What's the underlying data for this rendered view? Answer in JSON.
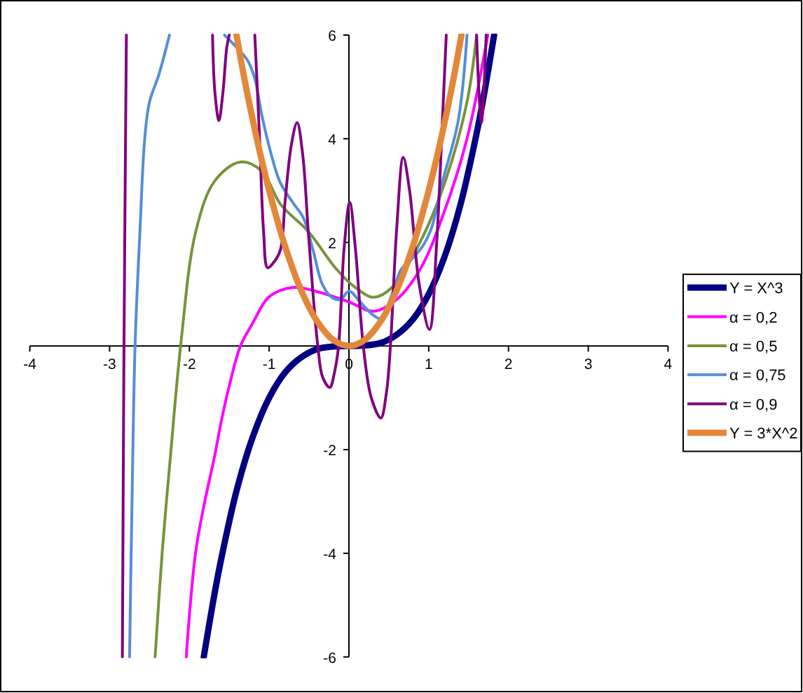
{
  "chart_data": {
    "type": "line",
    "xlim": [
      -4,
      4
    ],
    "ylim": [
      -6,
      6
    ],
    "xticks": [
      -4,
      -3,
      -2,
      -1,
      0,
      1,
      2,
      3,
      4
    ],
    "yticks": [
      -6,
      -4,
      -2,
      {
        "value": 0,
        "label": null
      },
      2,
      4,
      6
    ],
    "legend": "right",
    "marker": "none",
    "series": [
      {
        "name": "Y = X^3",
        "color": "#000080",
        "x": [
          -1.82,
          -1.7,
          -1.6,
          -1.4,
          -1.2,
          -1.0,
          -0.8,
          -0.6,
          -0.4,
          -0.2,
          0,
          0.2,
          0.4,
          0.6,
          0.8,
          1.0,
          1.2,
          1.4,
          1.6,
          1.7,
          1.82
        ],
        "values": [
          -6,
          -4.91,
          -4.1,
          -2.74,
          -1.73,
          -1,
          -0.51,
          -0.22,
          -0.06,
          -0.01,
          0,
          0.01,
          0.06,
          0.22,
          0.51,
          1,
          1.73,
          2.74,
          4.1,
          4.91,
          6
        ]
      },
      {
        "name": "α = 0,2",
        "color": "#ff00ff",
        "x": [
          -2.04,
          -1.92,
          -1.8,
          -1.69,
          -1.6,
          -1.51,
          -1.36,
          -1.21,
          -1.0,
          -0.69,
          -0.4,
          0,
          0.31,
          0.6,
          0.9,
          1.19,
          1.48,
          1.74
        ],
        "values": [
          -6,
          -3.96,
          -2.95,
          -2.17,
          -1.45,
          -0.83,
          0,
          0.43,
          0.95,
          1.13,
          1.05,
          0.85,
          0.67,
          0.9,
          1.5,
          2.57,
          4.0,
          6
        ]
      },
      {
        "name": "α = 0,5",
        "color": "#77933c",
        "x": [
          -2.43,
          -2.34,
          -2.24,
          -2.11,
          -1.92,
          -1.68,
          -1.36,
          -1.09,
          -0.86,
          -0.51,
          -0.16,
          0.08,
          0.31,
          0.54,
          0.9,
          1.19,
          1.48,
          1.6
        ],
        "values": [
          -6,
          -3.96,
          -2.17,
          0,
          2.21,
          3.19,
          3.55,
          3.37,
          2.74,
          2.21,
          1.49,
          1.13,
          0.94,
          1.13,
          2.03,
          3.1,
          4.71,
          6
        ]
      },
      {
        "name": "α = 0,75",
        "color": "#558ed5",
        "x": [
          -2.75,
          -2.72,
          -2.68,
          -2.62,
          -2.56,
          -2.5,
          -2.38,
          -2.25,
          -1.9,
          -1.56,
          -1.45,
          -1.27,
          -1.18,
          -1.09,
          -0.98,
          -0.86,
          -0.69,
          -0.57,
          -0.45,
          -0.33,
          -0.2,
          -0.1,
          0,
          0.14,
          0.3,
          0.4,
          0.54,
          0.66,
          0.8,
          0.93,
          1.04,
          1.16,
          1.37,
          1.48
        ],
        "values": [
          -6,
          -3.06,
          0.06,
          2.21,
          4.0,
          4.71,
          5.25,
          6,
          null,
          6,
          5.83,
          5.51,
          5.16,
          4.44,
          3.73,
          3.15,
          2.74,
          2.47,
          1.85,
          1.18,
          0.92,
          0.9,
          1.06,
          0.85,
          0.6,
          0.53,
          1.0,
          1.49,
          1.7,
          1.94,
          2.3,
          3.1,
          4.35,
          6
        ]
      },
      {
        "name": "α = 0,9",
        "color": "#800080",
        "x": [
          -2.84,
          -2.82,
          -2.79,
          -2.2,
          -1.71,
          -1.68,
          -1.63,
          -1.58,
          -1.53,
          -1.5,
          -1.35,
          -1.18,
          -1.12,
          -1.07,
          -1.02,
          -0.95,
          -0.86,
          -0.8,
          -0.72,
          -0.65,
          -0.58,
          -0.51,
          -0.45,
          -0.39,
          -0.33,
          -0.24,
          -0.18,
          -0.13,
          -0.06,
          0.01,
          0.08,
          0.18,
          0.28,
          0.4,
          0.47,
          0.52,
          0.6,
          0.68,
          0.76,
          0.88,
          1.01,
          1.1,
          1.17,
          1.22,
          1.4,
          1.6,
          1.63,
          1.66,
          1.69,
          1.72
        ],
        "values": [
          -6,
          0,
          6,
          null,
          6,
          4.89,
          4.35,
          4.89,
          5.78,
          6,
          null,
          6,
          4.0,
          2.21,
          1.51,
          1.6,
          1.85,
          2.8,
          3.9,
          4.31,
          3.7,
          2.21,
          1.0,
          0,
          -0.6,
          -0.8,
          -0.5,
          0,
          1.9,
          2.77,
          1.9,
          0,
          -1.0,
          -1.39,
          -0.9,
          0,
          2.3,
          3.64,
          3.0,
          1.2,
          0.32,
          2.0,
          4.3,
          6,
          null,
          6,
          4.9,
          4.31,
          4.9,
          6
        ]
      },
      {
        "name": "Y = 3*X^2",
        "color": "#e3873a",
        "x": [
          -1.41,
          -1.3,
          -1.2,
          -1.1,
          -1.0,
          -0.8,
          -0.6,
          -0.4,
          -0.2,
          0,
          0.2,
          0.4,
          0.6,
          0.8,
          1.0,
          1.1,
          1.2,
          1.3,
          1.41
        ],
        "values": [
          6,
          5.07,
          4.32,
          3.63,
          3,
          1.92,
          1.08,
          0.48,
          0.12,
          0,
          0.12,
          0.48,
          1.08,
          1.92,
          3,
          3.63,
          4.32,
          5.07,
          6
        ]
      }
    ]
  }
}
